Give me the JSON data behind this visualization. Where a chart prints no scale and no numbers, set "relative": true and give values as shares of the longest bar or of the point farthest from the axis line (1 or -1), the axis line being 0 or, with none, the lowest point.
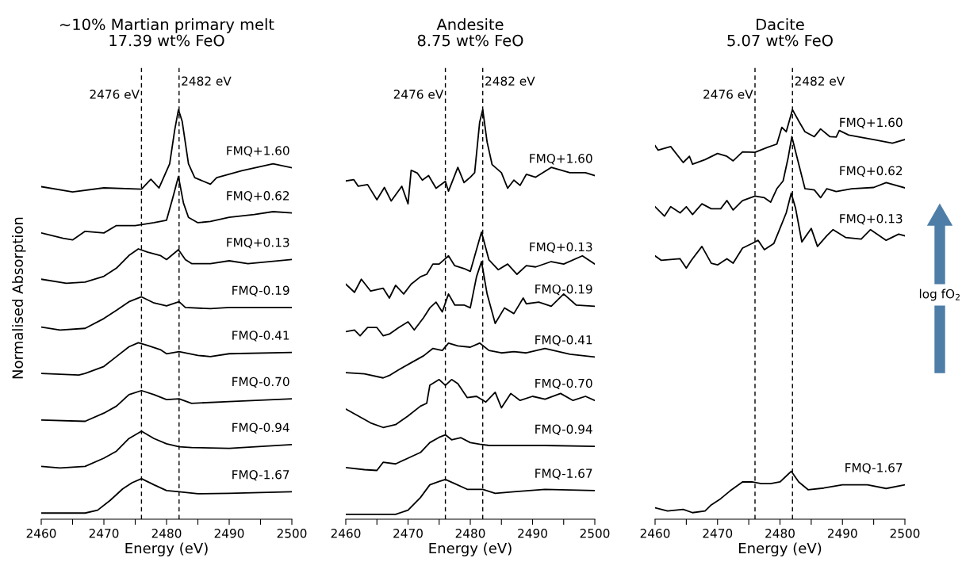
{
  "chart_data": [
    {
      "type": "line",
      "title": "~10% Martian primary melt\n17.39 wt% FeO",
      "xlabel": "Energy (eV)",
      "ylabel": "Normalised Absorption",
      "relative": true,
      "xlim": [
        2460,
        2500
      ],
      "xticks": [
        2460,
        {
          "value": 2465,
          "label": null
        },
        2470,
        {
          "value": 2475,
          "label": null
        },
        2480,
        {
          "value": 2485,
          "label": null
        },
        2490,
        {
          "value": 2495,
          "label": null
        },
        2500
      ],
      "ref_lines": [
        {
          "axis": "x",
          "value": 2476,
          "label": "2476 eV",
          "color": "#000000",
          "line_style": "dashed"
        },
        {
          "axis": "x",
          "value": 2482,
          "label": "2482 eV",
          "color": "#000000",
          "line_style": "dashed"
        }
      ],
      "series": [
        {
          "name": "FMQ+1.60",
          "color": "#000000",
          "x": [
            2460,
            2465,
            2470,
            2476,
            2477.5,
            2478.8,
            2480.5,
            2481.3,
            2481.9,
            2482.5,
            2483.5,
            2484.5,
            2487,
            2488,
            2492,
            2497,
            2500
          ],
          "values": [
            0.812,
            0.799,
            0.809,
            0.806,
            0.83,
            0.809,
            0.868,
            0.95,
            1.0,
            0.971,
            0.868,
            0.834,
            0.818,
            0.834,
            0.851,
            0.868,
            0.858
          ]
        },
        {
          "name": "FMQ+0.62",
          "color": "#000000",
          "x": [
            2460,
            2463.5,
            2465,
            2467,
            2470,
            2472,
            2475,
            2478,
            2480,
            2481,
            2481.9,
            2482.7,
            2483.5,
            2485,
            2487,
            2490,
            2494,
            2497,
            2500
          ],
          "values": [
            0.699,
            0.686,
            0.682,
            0.703,
            0.699,
            0.717,
            0.717,
            0.724,
            0.73,
            0.785,
            0.837,
            0.772,
            0.737,
            0.724,
            0.727,
            0.737,
            0.744,
            0.751,
            0.748
          ]
        },
        {
          "name": "FMQ+0.13",
          "color": "#000000",
          "x": [
            2460,
            2464,
            2467,
            2470,
            2472,
            2474,
            2475.5,
            2477,
            2479,
            2480,
            2481.9,
            2483,
            2484,
            2487,
            2490,
            2493,
            2500
          ],
          "values": [
            0.586,
            0.576,
            0.579,
            0.593,
            0.613,
            0.644,
            0.66,
            0.652,
            0.644,
            0.634,
            0.658,
            0.634,
            0.624,
            0.624,
            0.631,
            0.624,
            0.634
          ]
        },
        {
          "name": "FMQ-0.19",
          "color": "#000000",
          "x": [
            2460,
            2463,
            2467,
            2470,
            2472,
            2474,
            2476,
            2478,
            2480,
            2482,
            2483,
            2487,
            2490,
            2500
          ],
          "values": [
            0.469,
            0.462,
            0.466,
            0.49,
            0.51,
            0.531,
            0.543,
            0.528,
            0.521,
            0.531,
            0.517,
            0.514,
            0.517,
            0.517
          ]
        },
        {
          "name": "FMQ-0.41",
          "color": "#000000",
          "x": [
            2460,
            2466,
            2467,
            2470,
            2472,
            2474,
            2475.5,
            2477,
            2479,
            2480,
            2482,
            2485,
            2487,
            2490,
            2500
          ],
          "values": [
            0.356,
            0.352,
            0.356,
            0.373,
            0.397,
            0.421,
            0.431,
            0.424,
            0.414,
            0.404,
            0.409,
            0.4,
            0.397,
            0.404,
            0.407
          ]
        },
        {
          "name": "FMQ-0.70",
          "color": "#000000",
          "x": [
            2460,
            2467,
            2470,
            2472,
            2474,
            2476,
            2478,
            2480,
            2482,
            2484,
            2490,
            2500
          ],
          "values": [
            0.242,
            0.239,
            0.259,
            0.276,
            0.304,
            0.314,
            0.304,
            0.292,
            0.294,
            0.283,
            0.287,
            0.294
          ]
        },
        {
          "name": "FMQ-0.94",
          "color": "#000000",
          "x": [
            2460,
            2463,
            2467,
            2470,
            2472,
            2474,
            2476,
            2478,
            2480,
            2482,
            2484,
            2490,
            2500
          ],
          "values": [
            0.129,
            0.125,
            0.129,
            0.149,
            0.166,
            0.197,
            0.215,
            0.197,
            0.184,
            0.177,
            0.175,
            0.173,
            0.182
          ]
        },
        {
          "name": "FMQ-1.67",
          "color": "#000000",
          "x": [
            2460,
            2467,
            2469,
            2471,
            2473,
            2474.5,
            2476,
            2478,
            2480,
            2482,
            2485,
            2490,
            2500
          ],
          "values": [
            0.015,
            0.015,
            0.022,
            0.046,
            0.074,
            0.089,
            0.099,
            0.084,
            0.07,
            0.067,
            0.062,
            0.063,
            0.067
          ]
        }
      ]
    },
    {
      "type": "line",
      "title": "Andesite\n8.75 wt% FeO",
      "xlabel": "Energy (eV)",
      "relative": true,
      "xlim": [
        2460,
        2500
      ],
      "xticks": [
        2460,
        {
          "value": 2465,
          "label": null
        },
        2470,
        {
          "value": 2475,
          "label": null
        },
        2480,
        {
          "value": 2485,
          "label": null
        },
        2490,
        {
          "value": 2495,
          "label": null
        },
        2500
      ],
      "ref_lines": [
        {
          "axis": "x",
          "value": 2476,
          "label": "2476 eV",
          "color": "#000000",
          "line_style": "dashed"
        },
        {
          "axis": "x",
          "value": 2482,
          "label": "2482 eV",
          "color": "#000000",
          "line_style": "dashed"
        }
      ],
      "series": [
        {
          "name": "FMQ+1.60",
          "color": "#000000",
          "x": [
            2460,
            2461.3,
            2462,
            2463.5,
            2465,
            2466.2,
            2467.3,
            2469,
            2470,
            2470.5,
            2471.5,
            2472.3,
            2473.3,
            2474.5,
            2476,
            2476.5,
            2478,
            2479,
            2480,
            2480.7,
            2481.5,
            2482,
            2482.7,
            2483.5,
            2485,
            2486,
            2487,
            2488,
            2489,
            2490.5,
            2493,
            2496,
            2498.5,
            2500
          ],
          "values": [
            0.826,
            0.829,
            0.813,
            0.817,
            0.78,
            0.81,
            0.777,
            0.813,
            0.77,
            0.852,
            0.845,
            0.828,
            0.839,
            0.808,
            0.825,
            0.801,
            0.859,
            0.822,
            0.835,
            0.846,
            0.969,
            1.0,
            0.921,
            0.866,
            0.846,
            0.808,
            0.828,
            0.815,
            0.842,
            0.835,
            0.859,
            0.846,
            0.846,
            0.839
          ]
        },
        {
          "name": "FMQ+0.13",
          "color": "#000000",
          "x": [
            2460,
            2461.4,
            2462.5,
            2464,
            2466,
            2467,
            2468,
            2469.3,
            2470.5,
            2472,
            2473,
            2474,
            2475,
            2476.5,
            2477.5,
            2479,
            2480,
            2481.8,
            2483,
            2484.5,
            2486,
            2487.5,
            2489,
            2490.5,
            2493,
            2495,
            2498,
            2500
          ],
          "values": [
            0.574,
            0.554,
            0.586,
            0.557,
            0.564,
            0.54,
            0.571,
            0.55,
            0.574,
            0.592,
            0.598,
            0.623,
            0.623,
            0.643,
            0.619,
            0.612,
            0.605,
            0.701,
            0.633,
            0.609,
            0.623,
            0.598,
            0.619,
            0.616,
            0.629,
            0.623,
            0.643,
            0.623
          ]
        },
        {
          "name": "FMQ-0.19",
          "color": "#000000",
          "x": [
            2460,
            2461.4,
            2462.3,
            2463.5,
            2465,
            2466,
            2467,
            2468.5,
            2470,
            2471,
            2472.5,
            2473.5,
            2474.5,
            2475.5,
            2476.5,
            2477.5,
            2479,
            2480,
            2481,
            2481.8,
            2482.7,
            2484,
            2485.5,
            2487,
            2488.5,
            2489,
            2491,
            2493,
            2495,
            2497,
            2500
          ],
          "values": [
            0.458,
            0.462,
            0.448,
            0.468,
            0.468,
            0.448,
            0.452,
            0.468,
            0.482,
            0.462,
            0.492,
            0.516,
            0.53,
            0.506,
            0.55,
            0.523,
            0.523,
            0.516,
            0.592,
            0.629,
            0.55,
            0.478,
            0.516,
            0.502,
            0.54,
            0.526,
            0.53,
            0.52,
            0.55,
            0.523,
            0.52
          ]
        },
        {
          "name": "FMQ-0.41",
          "color": "#000000",
          "x": [
            2460,
            2463,
            2466,
            2467,
            2468.5,
            2470.5,
            2472.5,
            2474,
            2475.5,
            2476.5,
            2478,
            2480,
            2481.5,
            2483,
            2485,
            2487,
            2489,
            2492,
            2496,
            2500
          ],
          "values": [
            0.358,
            0.355,
            0.345,
            0.351,
            0.365,
            0.382,
            0.399,
            0.417,
            0.412,
            0.43,
            0.423,
            0.42,
            0.43,
            0.412,
            0.406,
            0.409,
            0.406,
            0.417,
            0.403,
            0.396
          ]
        },
        {
          "name": "FMQ-0.70",
          "color": "#000000",
          "x": [
            2460,
            2462,
            2464,
            2466,
            2468,
            2470,
            2472,
            2473,
            2473.5,
            2475,
            2476,
            2477,
            2478,
            2479.5,
            2481,
            2482.5,
            2484,
            2485,
            2486.5,
            2488,
            2490,
            2492,
            2494.5,
            2496.5,
            2498.5,
            2500
          ],
          "values": [
            0.269,
            0.252,
            0.235,
            0.224,
            0.231,
            0.252,
            0.276,
            0.283,
            0.327,
            0.341,
            0.327,
            0.341,
            0.331,
            0.297,
            0.3,
            0.286,
            0.31,
            0.272,
            0.307,
            0.29,
            0.3,
            0.293,
            0.307,
            0.29,
            0.3,
            0.29
          ]
        },
        {
          "name": "FMQ-0.94",
          "color": "#000000",
          "x": [
            2460,
            2463,
            2465,
            2466,
            2468,
            2470,
            2472,
            2473.5,
            2475,
            2476,
            2477,
            2478.5,
            2480,
            2481.5,
            2483,
            2485,
            2488,
            2492,
            2500
          ],
          "values": [
            0.126,
            0.121,
            0.119,
            0.139,
            0.135,
            0.149,
            0.163,
            0.187,
            0.2,
            0.206,
            0.194,
            0.199,
            0.187,
            0.183,
            0.18,
            0.18,
            0.18,
            0.18,
            0.178
          ]
        },
        {
          "name": "FMQ-1.67",
          "color": "#000000",
          "x": [
            2460,
            2464,
            2468,
            2470,
            2472,
            2473.5,
            2475,
            2476,
            2477.5,
            2479.5,
            2482,
            2484,
            2487,
            2492,
            2500
          ],
          "values": [
            0.012,
            0.012,
            0.012,
            0.022,
            0.053,
            0.084,
            0.092,
            0.097,
            0.087,
            0.073,
            0.073,
            0.063,
            0.067,
            0.073,
            0.07
          ]
        }
      ]
    },
    {
      "type": "line",
      "title": "Dacite\n5.07 wt% FeO",
      "xlabel": "Energy (eV)",
      "relative": true,
      "xlim": [
        2460,
        2500
      ],
      "xticks": [
        2460,
        {
          "value": 2465,
          "label": null
        },
        2470,
        {
          "value": 2475,
          "label": null
        },
        2480,
        {
          "value": 2485,
          "label": null
        },
        2490,
        {
          "value": 2495,
          "label": null
        },
        2500
      ],
      "ref_lines": [
        {
          "axis": "x",
          "value": 2476,
          "label": "2476 eV",
          "color": "#000000",
          "line_style": "dashed"
        },
        {
          "axis": "x",
          "value": 2482,
          "label": "2482 eV",
          "color": "#000000",
          "line_style": "dashed"
        }
      ],
      "annotations": [
        "log fO$_{2}$"
      ],
      "series": [
        {
          "name": "FMQ+1.60",
          "color": "#000000",
          "x": [
            2460,
            2460.5,
            2462.5,
            2464.5,
            2465.5,
            2466,
            2468,
            2470,
            2471.5,
            2472.5,
            2474,
            2476,
            2478,
            2479.5,
            2480.3,
            2481,
            2482,
            2483,
            2484,
            2485.5,
            2486.5,
            2488,
            2489,
            2489.5,
            2491,
            2495,
            2498,
            2500
          ],
          "values": [
            0.912,
            0.901,
            0.91,
            0.871,
            0.886,
            0.867,
            0.878,
            0.893,
            0.886,
            0.875,
            0.897,
            0.896,
            0.908,
            0.916,
            0.957,
            0.946,
            1.0,
            0.972,
            0.946,
            0.934,
            0.953,
            0.934,
            0.933,
            0.949,
            0.938,
            0.927,
            0.918,
            0.927
          ]
        },
        {
          "name": "FMQ+0.62",
          "color": "#000000",
          "x": [
            2460,
            2461.5,
            2462.5,
            2464,
            2465,
            2466,
            2467.5,
            2469,
            2470.5,
            2471.5,
            2472.5,
            2474,
            2476,
            2477.5,
            2478.5,
            2479.5,
            2480.5,
            2481.3,
            2481.9,
            2483,
            2484,
            2485.5,
            2486.5,
            2487.5,
            2489,
            2491.5,
            2495,
            2497,
            2500
          ],
          "values": [
            0.763,
            0.74,
            0.763,
            0.748,
            0.763,
            0.744,
            0.77,
            0.758,
            0.758,
            0.778,
            0.755,
            0.778,
            0.789,
            0.785,
            0.774,
            0.807,
            0.826,
            0.882,
            0.934,
            0.867,
            0.807,
            0.804,
            0.785,
            0.807,
            0.8,
            0.807,
            0.81,
            0.822,
            0.809
          ]
        },
        {
          "name": "FMQ+0.13",
          "color": "#000000",
          "x": [
            2460,
            2461,
            2464,
            2465,
            2465.8,
            2467.5,
            2469,
            2470,
            2471.5,
            2472.5,
            2474,
            2475.5,
            2476.5,
            2477.5,
            2479,
            2480,
            2481,
            2481.8,
            2482.5,
            2483.5,
            2485,
            2486,
            2487.5,
            2488.5,
            2490.5,
            2493,
            2494.5,
            2497,
            2499,
            2500
          ],
          "values": [
            0.643,
            0.632,
            0.636,
            0.613,
            0.632,
            0.666,
            0.625,
            0.621,
            0.636,
            0.625,
            0.662,
            0.673,
            0.681,
            0.658,
            0.673,
            0.71,
            0.748,
            0.796,
            0.759,
            0.677,
            0.71,
            0.666,
            0.692,
            0.707,
            0.688,
            0.684,
            0.707,
            0.681,
            0.696,
            0.692
          ]
        },
        {
          "name": "FMQ-1.67",
          "color": "#000000",
          "x": [
            2460,
            2462,
            2464.5,
            2466,
            2468,
            2469,
            2470.5,
            2472,
            2474,
            2475.5,
            2477,
            2478.5,
            2480,
            2481.8,
            2483,
            2484.5,
            2487,
            2490,
            2494,
            2497,
            2500
          ],
          "values": [
            0.028,
            0.02,
            0.024,
            0.016,
            0.02,
            0.035,
            0.05,
            0.069,
            0.091,
            0.091,
            0.087,
            0.087,
            0.091,
            0.117,
            0.091,
            0.072,
            0.076,
            0.084,
            0.084,
            0.075,
            0.084
          ]
        }
      ]
    }
  ]
}
